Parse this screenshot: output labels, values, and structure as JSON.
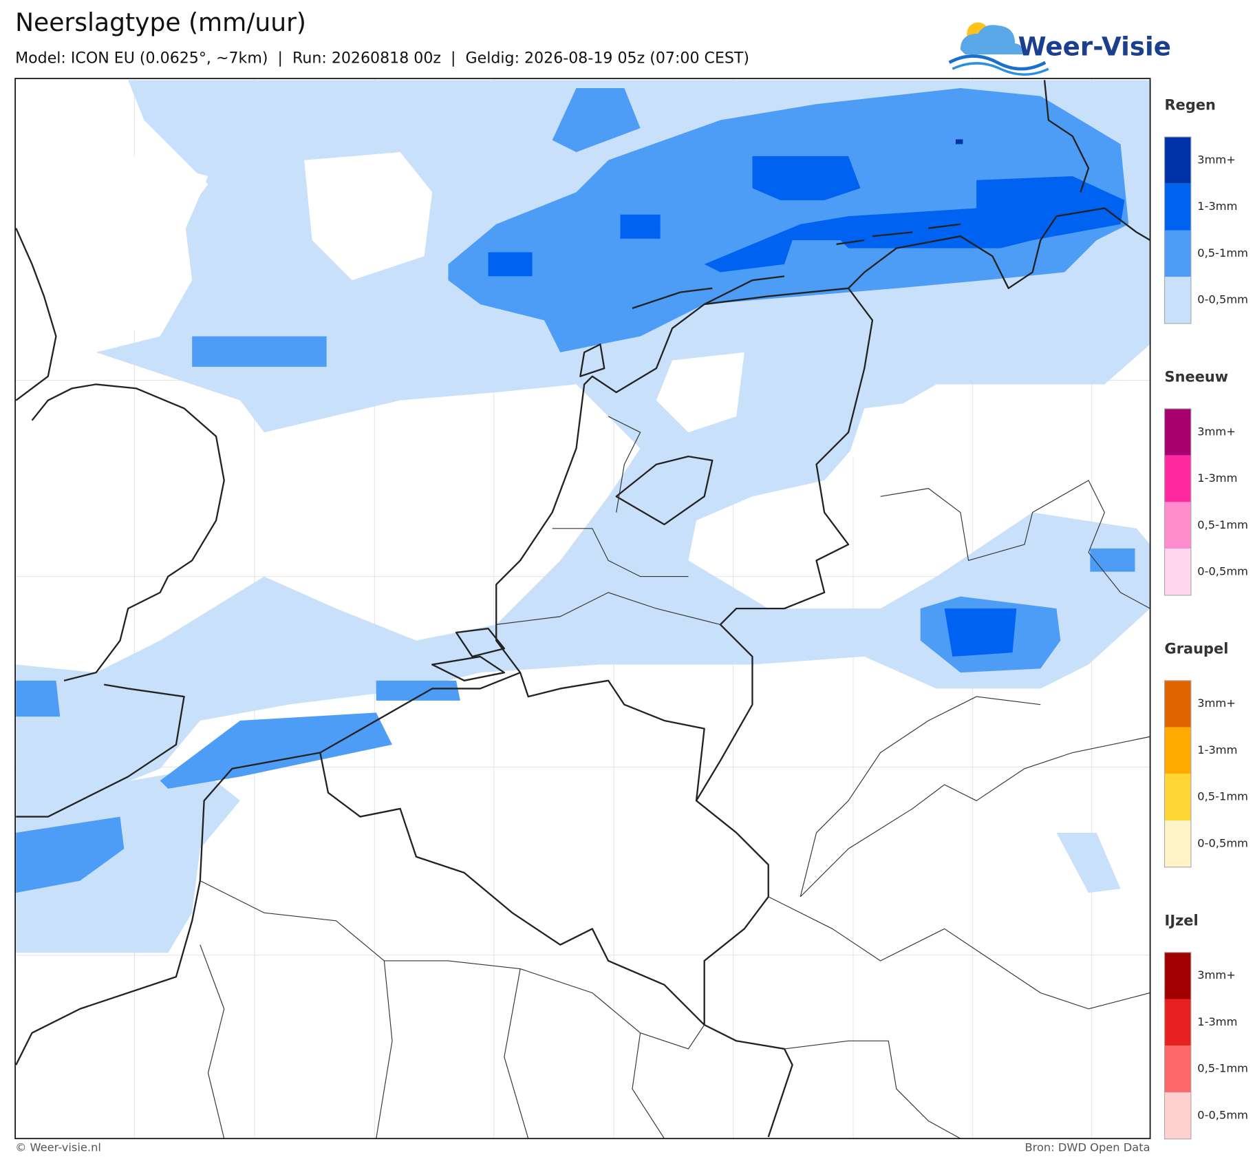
{
  "header": {
    "title": "Neerslagtype (mm/uur)",
    "subtitle": "Model: ICON EU (0.0625°, ~7km)  |  Run: 20260818 00z  |  Geldig: 2026-08-19 05z (07:00 CEST)",
    "logo": "Weer-Visie"
  },
  "legend": [
    {
      "title": "Regen",
      "items": [
        {
          "label": "3mm+",
          "color": "#0033aa"
        },
        {
          "label": "1-3mm",
          "color": "#0062f0"
        },
        {
          "label": "0,5-1mm",
          "color": "#4d9cf5"
        },
        {
          "label": "0-0,5mm",
          "color": "#c8e0fa"
        }
      ]
    },
    {
      "title": "Sneeuw",
      "items": [
        {
          "label": "3mm+",
          "color": "#a8006e"
        },
        {
          "label": "1-3mm",
          "color": "#ff2aa0"
        },
        {
          "label": "0,5-1mm",
          "color": "#ff8ccc"
        },
        {
          "label": "0-0,5mm",
          "color": "#ffd6ee"
        }
      ]
    },
    {
      "title": "Graupel",
      "items": [
        {
          "label": "3mm+",
          "color": "#e06400"
        },
        {
          "label": "1-3mm",
          "color": "#ffaa00"
        },
        {
          "label": "0,5-1mm",
          "color": "#ffd633"
        },
        {
          "label": "0-0,5mm",
          "color": "#fff3c8"
        }
      ]
    },
    {
      "title": "IJzel",
      "items": [
        {
          "label": "3mm+",
          "color": "#a00000"
        },
        {
          "label": "1-3mm",
          "color": "#e82020"
        },
        {
          "label": "0,5-1mm",
          "color": "#ff6868"
        },
        {
          "label": "0-0,5mm",
          "color": "#ffd0d0"
        }
      ]
    }
  ],
  "footer": {
    "copyright": "© Weer-visie.nl",
    "source": "Bron: DWD Open Data"
  }
}
